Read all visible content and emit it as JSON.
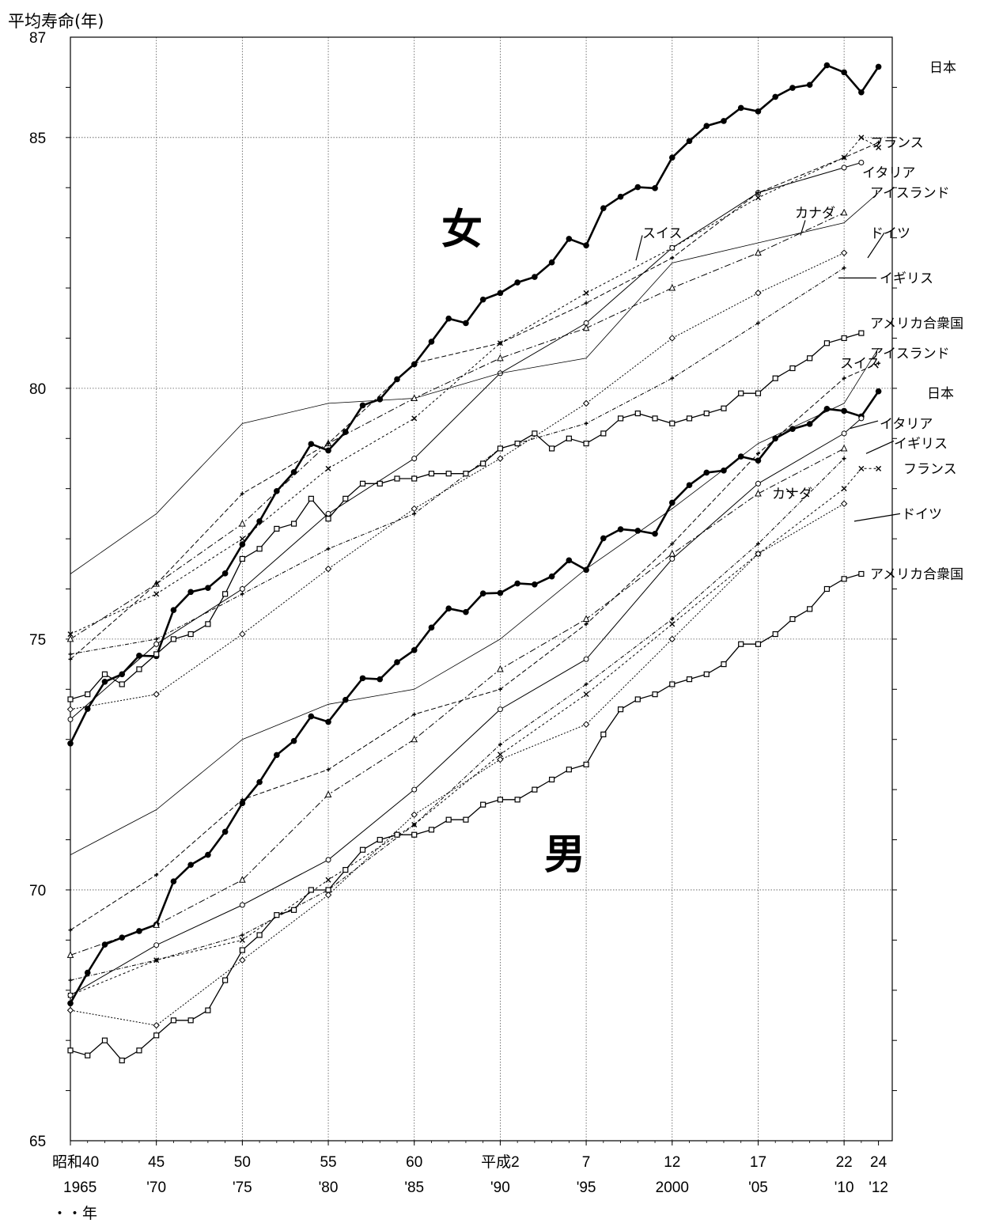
{
  "chart_data": {
    "type": "line",
    "title": "",
    "ylabel": "平均寿命(年)",
    "xlabel": "・・年",
    "ylim": [
      65,
      87
    ],
    "xlim": [
      1965,
      2012.8
    ],
    "grid": true,
    "y_ticks": [
      "87",
      "85",
      "80",
      "75",
      "70",
      "65"
    ],
    "x_ticks": [
      {
        "x": 1965,
        "top": "昭和40",
        "bottom": "1965"
      },
      {
        "x": 1970,
        "top": "45",
        "bottom": "'70"
      },
      {
        "x": 1975,
        "top": "50",
        "bottom": "'75"
      },
      {
        "x": 1980,
        "top": "55",
        "bottom": "'80"
      },
      {
        "x": 1985,
        "top": "60",
        "bottom": "'85"
      },
      {
        "x": 1990,
        "top": "平成2",
        "bottom": "'90"
      },
      {
        "x": 1995,
        "top": "7",
        "bottom": "'95"
      },
      {
        "x": 2000,
        "top": "12",
        "bottom": "2000"
      },
      {
        "x": 2005,
        "top": "17",
        "bottom": "'05"
      },
      {
        "x": 2010,
        "top": "22",
        "bottom": "'10"
      },
      {
        "x": 2012,
        "top": "24",
        "bottom": "'12"
      }
    ],
    "annotations": {
      "female": "女",
      "male": "男"
    },
    "legend": [
      {
        "group": "female",
        "label": "日本",
        "y": 86.4
      },
      {
        "group": "female",
        "label": "フランス",
        "y": 84.9
      },
      {
        "group": "female",
        "label": "イタリア",
        "y": 84.3
      },
      {
        "group": "female",
        "label": "アイスランド",
        "y": 83.9
      },
      {
        "group": "female",
        "label": "カナダ",
        "y": 83.5
      },
      {
        "group": "female",
        "label": "スイス",
        "y": 83.1
      },
      {
        "group": "female",
        "label": "ドイツ",
        "y": 83.1
      },
      {
        "group": "female",
        "label": "イギリス",
        "y": 82.2
      },
      {
        "group": "female",
        "label": "アメリカ合衆国",
        "y": 81.3
      },
      {
        "group": "male",
        "label": "アイスランド",
        "y": 80.7
      },
      {
        "group": "male",
        "label": "スイス",
        "y": 80.5
      },
      {
        "group": "male",
        "label": "日本",
        "y": 79.9
      },
      {
        "group": "male",
        "label": "イタリア",
        "y": 79.3
      },
      {
        "group": "male",
        "label": "イギリス",
        "y": 78.9
      },
      {
        "group": "male",
        "label": "フランス",
        "y": 78.4
      },
      {
        "group": "male",
        "label": "カナダ",
        "y": 77.9
      },
      {
        "group": "male",
        "label": "ドイツ",
        "y": 77.5
      },
      {
        "group": "male",
        "label": "アメリカ合衆国",
        "y": 76.3
      }
    ],
    "series": [
      {
        "group": "female",
        "name": "日本",
        "color": "#000000",
        "x": [
          1965,
          1966,
          1967,
          1968,
          1969,
          1970,
          1971,
          1972,
          1973,
          1974,
          1975,
          1976,
          1977,
          1978,
          1979,
          1980,
          1981,
          1982,
          1983,
          1984,
          1985,
          1986,
          1987,
          1988,
          1989,
          1990,
          1991,
          1992,
          1993,
          1994,
          1995,
          1996,
          1997,
          1998,
          1999,
          2000,
          2001,
          2002,
          2003,
          2004,
          2005,
          2006,
          2007,
          2008,
          2009,
          2010,
          2011,
          2012
        ],
        "y": [
          72.92,
          73.61,
          74.15,
          74.3,
          74.67,
          74.66,
          75.58,
          75.94,
          76.02,
          76.31,
          76.89,
          77.35,
          77.95,
          78.33,
          78.89,
          78.76,
          79.13,
          79.66,
          79.78,
          80.18,
          80.48,
          80.93,
          81.39,
          81.3,
          81.77,
          81.9,
          82.11,
          82.22,
          82.51,
          82.98,
          82.85,
          83.59,
          83.82,
          84.01,
          83.99,
          84.6,
          84.93,
          85.23,
          85.33,
          85.59,
          85.52,
          85.81,
          85.99,
          86.05,
          86.44,
          86.3,
          85.9,
          86.41
        ]
      },
      {
        "group": "female",
        "name": "フランス",
        "color": "#000000",
        "x": [
          1965,
          1970,
          1975,
          1980,
          1985,
          1990,
          1995,
          2000,
          2005,
          2010,
          2011,
          2012
        ],
        "y": [
          75.1,
          75.9,
          77.0,
          78.4,
          79.4,
          80.9,
          81.9,
          82.8,
          83.8,
          84.6,
          85.0,
          84.8
        ]
      },
      {
        "group": "female",
        "name": "イタリア",
        "color": "#000000",
        "x": [
          1965,
          1970,
          1975,
          1980,
          1985,
          1990,
          1995,
          2000,
          2005,
          2010,
          2011
        ],
        "y": [
          73.4,
          74.9,
          76.0,
          77.5,
          78.6,
          80.3,
          81.3,
          82.8,
          83.9,
          84.4,
          84.5
        ]
      },
      {
        "group": "female",
        "name": "アイスランド",
        "color": "#000000",
        "x": [
          1965,
          1970,
          1975,
          1980,
          1985,
          1990,
          1995,
          2000,
          2005,
          2010,
          2012
        ],
        "y": [
          76.3,
          77.5,
          79.3,
          79.7,
          79.8,
          80.3,
          80.6,
          82.5,
          82.9,
          83.3,
          83.9
        ]
      },
      {
        "group": "female",
        "name": "カナダ",
        "color": "#000000",
        "x": [
          1965,
          1970,
          1975,
          1980,
          1985,
          1990,
          1995,
          2000,
          2005,
          2010
        ],
        "y": [
          75.0,
          76.1,
          77.3,
          78.9,
          79.8,
          80.6,
          81.2,
          82.0,
          82.7,
          83.5
        ]
      },
      {
        "group": "female",
        "name": "スイス",
        "color": "#000000",
        "x": [
          1965,
          1970,
          1975,
          1980,
          1985,
          1990,
          1995,
          2000,
          2005,
          2010,
          2012
        ],
        "y": [
          74.6,
          76.1,
          77.9,
          78.9,
          80.5,
          80.9,
          81.7,
          82.6,
          83.9,
          84.6,
          84.9
        ]
      },
      {
        "group": "female",
        "name": "ドイツ",
        "color": "#000000",
        "x": [
          1965,
          1970,
          1975,
          1980,
          1985,
          1990,
          1995,
          2000,
          2005,
          2010
        ],
        "y": [
          73.6,
          73.9,
          75.1,
          76.4,
          77.6,
          78.6,
          79.7,
          81.0,
          81.9,
          82.7
        ]
      },
      {
        "group": "female",
        "name": "イギリス",
        "color": "#000000",
        "x": [
          1965,
          1970,
          1975,
          1980,
          1985,
          1990,
          1995,
          2000,
          2005,
          2010
        ],
        "y": [
          74.7,
          75.0,
          75.9,
          76.8,
          77.5,
          78.8,
          79.3,
          80.2,
          81.3,
          82.4
        ]
      },
      {
        "group": "female",
        "name": "アメリカ合衆国",
        "color": "#000000",
        "x": [
          1965,
          1966,
          1967,
          1968,
          1969,
          1970,
          1971,
          1972,
          1973,
          1974,
          1975,
          1976,
          1977,
          1978,
          1979,
          1980,
          1981,
          1982,
          1983,
          1984,
          1985,
          1986,
          1987,
          1988,
          1989,
          1990,
          1991,
          1992,
          1993,
          1994,
          1995,
          1996,
          1997,
          1998,
          1999,
          2000,
          2001,
          2002,
          2003,
          2004,
          2005,
          2006,
          2007,
          2008,
          2009,
          2010,
          2011
        ],
        "y": [
          73.8,
          73.9,
          74.3,
          74.1,
          74.4,
          74.7,
          75.0,
          75.1,
          75.3,
          75.9,
          76.6,
          76.8,
          77.2,
          77.3,
          77.8,
          77.4,
          77.8,
          78.1,
          78.1,
          78.2,
          78.2,
          78.3,
          78.3,
          78.3,
          78.5,
          78.8,
          78.9,
          79.1,
          78.8,
          79.0,
          78.9,
          79.1,
          79.4,
          79.5,
          79.4,
          79.3,
          79.4,
          79.5,
          79.6,
          79.9,
          79.9,
          80.2,
          80.4,
          80.6,
          80.9,
          81.0,
          81.1
        ]
      },
      {
        "group": "male",
        "name": "日本",
        "color": "#000000",
        "x": [
          1965,
          1966,
          1967,
          1968,
          1969,
          1970,
          1971,
          1972,
          1973,
          1974,
          1975,
          1976,
          1977,
          1978,
          1979,
          1980,
          1981,
          1982,
          1983,
          1984,
          1985,
          1986,
          1987,
          1988,
          1989,
          1990,
          1991,
          1992,
          1993,
          1994,
          1995,
          1996,
          1997,
          1998,
          1999,
          2000,
          2001,
          2002,
          2003,
          2004,
          2005,
          2006,
          2007,
          2008,
          2009,
          2010,
          2011,
          2012
        ],
        "y": [
          67.74,
          68.35,
          68.91,
          69.05,
          69.18,
          69.31,
          70.17,
          70.5,
          70.7,
          71.16,
          71.73,
          72.15,
          72.69,
          72.97,
          73.46,
          73.35,
          73.79,
          74.22,
          74.2,
          74.54,
          74.78,
          75.23,
          75.61,
          75.54,
          75.91,
          75.92,
          76.11,
          76.09,
          76.25,
          76.57,
          76.38,
          77.01,
          77.19,
          77.16,
          77.1,
          77.72,
          78.07,
          78.32,
          78.36,
          78.64,
          78.56,
          79.0,
          79.19,
          79.29,
          79.59,
          79.55,
          79.44,
          79.94
        ]
      },
      {
        "group": "male",
        "name": "フランス",
        "color": "#000000",
        "x": [
          1965,
          1970,
          1975,
          1980,
          1985,
          1990,
          1995,
          2000,
          2005,
          2010,
          2011,
          2012
        ],
        "y": [
          67.9,
          68.6,
          69.0,
          70.2,
          71.3,
          72.7,
          73.9,
          75.3,
          76.7,
          78.0,
          78.4,
          78.4
        ]
      },
      {
        "group": "male",
        "name": "イタリア",
        "color": "#000000",
        "x": [
          1965,
          1970,
          1975,
          1980,
          1985,
          1990,
          1995,
          2000,
          2005,
          2010,
          2011
        ],
        "y": [
          67.9,
          68.9,
          69.7,
          70.6,
          72.0,
          73.6,
          74.6,
          76.6,
          78.1,
          79.1,
          79.4
        ]
      },
      {
        "group": "male",
        "name": "アイスランド",
        "color": "#000000",
        "x": [
          1965,
          1970,
          1975,
          1980,
          1985,
          1990,
          1995,
          2000,
          2005,
          2010,
          2012
        ],
        "y": [
          70.7,
          71.6,
          73.0,
          73.7,
          74.0,
          75.0,
          76.4,
          77.6,
          78.9,
          79.7,
          80.8
        ]
      },
      {
        "group": "male",
        "name": "カナダ",
        "color": "#000000",
        "x": [
          1965,
          1970,
          1975,
          1980,
          1985,
          1990,
          1995,
          2000,
          2005,
          2010
        ],
        "y": [
          68.7,
          69.3,
          70.2,
          71.9,
          73.0,
          74.4,
          75.4,
          76.7,
          77.9,
          78.8
        ]
      },
      {
        "group": "male",
        "name": "スイス",
        "color": "#000000",
        "x": [
          1965,
          1970,
          1975,
          1980,
          1985,
          1990,
          1995,
          2000,
          2005,
          2010,
          2012
        ],
        "y": [
          69.2,
          70.3,
          71.8,
          72.4,
          73.5,
          74.0,
          75.3,
          76.9,
          78.7,
          80.2,
          80.5
        ]
      },
      {
        "group": "male",
        "name": "ドイツ",
        "color": "#000000",
        "x": [
          1965,
          1970,
          1975,
          1980,
          1985,
          1990,
          1995,
          2000,
          2005,
          2010
        ],
        "y": [
          67.6,
          67.3,
          68.6,
          69.9,
          71.5,
          72.6,
          73.3,
          75.0,
          76.7,
          77.7
        ]
      },
      {
        "group": "male",
        "name": "イギリス",
        "color": "#000000",
        "x": [
          1965,
          1970,
          1975,
          1980,
          1985,
          1990,
          1995,
          2000,
          2005,
          2010
        ],
        "y": [
          68.2,
          68.6,
          69.1,
          70.0,
          71.3,
          72.9,
          74.1,
          75.4,
          76.9,
          78.6
        ]
      },
      {
        "group": "male",
        "name": "アメリカ合衆国",
        "color": "#000000",
        "x": [
          1965,
          1966,
          1967,
          1968,
          1969,
          1970,
          1971,
          1972,
          1973,
          1974,
          1975,
          1976,
          1977,
          1978,
          1979,
          1980,
          1981,
          1982,
          1983,
          1984,
          1985,
          1986,
          1987,
          1988,
          1989,
          1990,
          1991,
          1992,
          1993,
          1994,
          1995,
          1996,
          1997,
          1998,
          1999,
          2000,
          2001,
          2002,
          2003,
          2004,
          2005,
          2006,
          2007,
          2008,
          2009,
          2010,
          2011
        ],
        "y": [
          66.8,
          66.7,
          67.0,
          66.6,
          66.8,
          67.1,
          67.4,
          67.4,
          67.6,
          68.2,
          68.8,
          69.1,
          69.5,
          69.6,
          70.0,
          70.0,
          70.4,
          70.8,
          71.0,
          71.1,
          71.1,
          71.2,
          71.4,
          71.4,
          71.7,
          71.8,
          71.8,
          72.0,
          72.2,
          72.4,
          72.5,
          73.1,
          73.6,
          73.8,
          73.9,
          74.1,
          74.2,
          74.3,
          74.5,
          74.9,
          74.9,
          75.1,
          75.4,
          75.6,
          76.0,
          76.2,
          76.3
        ]
      }
    ]
  }
}
